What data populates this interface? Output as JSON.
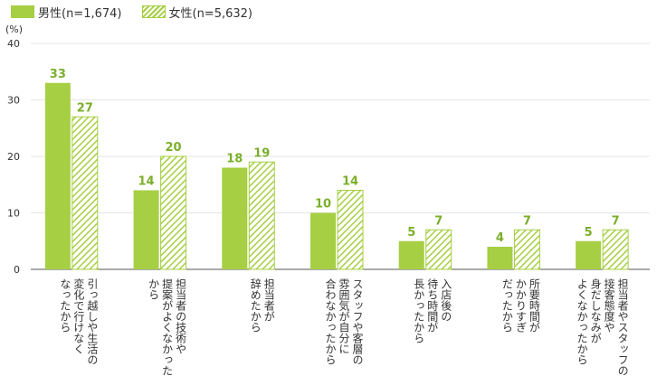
{
  "legend": {
    "male": "男性(n=1,674)",
    "female": "女性(n=5,632)"
  },
  "unit_label": "(%)",
  "colors": {
    "bar": "#a6cf43",
    "label": "#7aaf2a",
    "grid": "#e6e6e6",
    "axis": "#555555"
  },
  "chart_data": {
    "type": "bar",
    "title": "",
    "ylabel": "(%)",
    "ylim": [
      0,
      40
    ],
    "yticks": [
      0,
      10,
      20,
      30,
      40
    ],
    "grid": true,
    "legend_position": "top-left",
    "categories": [
      [
        "引っ越しや生活の",
        "変化で行けなく",
        "なったから"
      ],
      [
        "担当者の技術や",
        "提案がよくなかった",
        "から"
      ],
      [
        "担当者が",
        "辞めたから"
      ],
      [
        "スタッフや客層の",
        "雰囲気が自分に",
        "合わなかったから"
      ],
      [
        "入店後の",
        "待ち時間が",
        "長かったから"
      ],
      [
        "所要時間が",
        "かかりすぎ",
        "だったから"
      ],
      [
        "担当者やスタッフの",
        "接客態度や",
        "身だしなみが",
        "よくなかったから"
      ]
    ],
    "series": [
      {
        "name": "男性(n=1,674)",
        "pattern": "solid",
        "values": [
          33,
          14,
          18,
          10,
          5,
          4,
          5
        ]
      },
      {
        "name": "女性(n=5,632)",
        "pattern": "hatch",
        "values": [
          27,
          20,
          19,
          14,
          7,
          7,
          7
        ]
      }
    ]
  }
}
